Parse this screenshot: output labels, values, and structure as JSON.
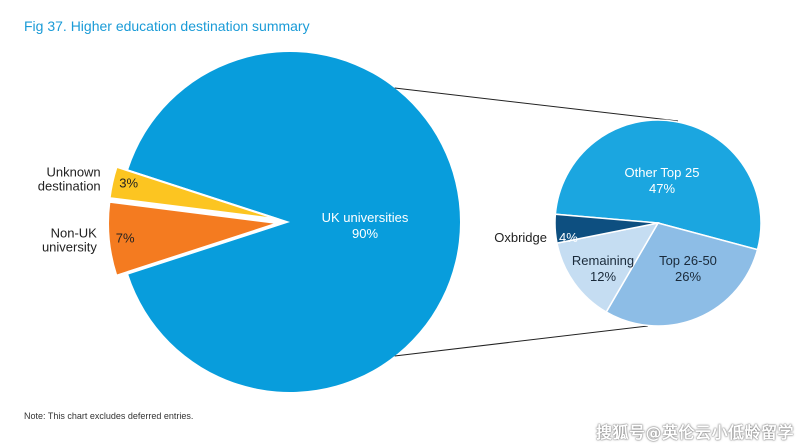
{
  "title": "Fig 37. Higher education destination summary",
  "note": "Note: This chart excludes deferred entries.",
  "watermark": "搜狐号@英伦云小低龄留学",
  "colors": {
    "title": "#1a9bd7",
    "uk_universities": "#089ddc",
    "unknown_destination": "#fcc521",
    "non_uk_university": "#f47b20",
    "other_top_25": "#1ba6e0",
    "oxbridge": "#0d4f80",
    "top_26_50": "#8dbde6",
    "remaining": "#c5ddf2",
    "connector": "#222222"
  },
  "chart_data": [
    {
      "type": "pie",
      "name": "main",
      "slices": [
        {
          "label": "UK universities",
          "label_lines": [
            "UK universities"
          ],
          "value_text": "90%",
          "value": 90,
          "color_key": "uk_universities",
          "exploded": false
        },
        {
          "label": "Unknown destination",
          "label_lines": [
            "Unknown",
            "destination"
          ],
          "value_text": "3%",
          "value": 3,
          "color_key": "unknown_destination",
          "exploded": true
        },
        {
          "label": "Non-UK university",
          "label_lines": [
            "Non-UK",
            "university"
          ],
          "value_text": "7%",
          "value": 7,
          "color_key": "non_uk_university",
          "exploded": true
        }
      ]
    },
    {
      "type": "pie",
      "name": "breakdown of UK universities",
      "slices": [
        {
          "label": "Other Top 25",
          "value_text": "47%",
          "value": 47,
          "color_key": "other_top_25"
        },
        {
          "label": "Top 26-50",
          "value_text": "26%",
          "value": 26,
          "color_key": "top_26_50"
        },
        {
          "label": "Remaining",
          "value_text": "12%",
          "value": 12,
          "color_key": "remaining"
        },
        {
          "label": "Oxbridge",
          "value_text": "4%",
          "value": 4,
          "color_key": "oxbridge"
        }
      ]
    }
  ]
}
